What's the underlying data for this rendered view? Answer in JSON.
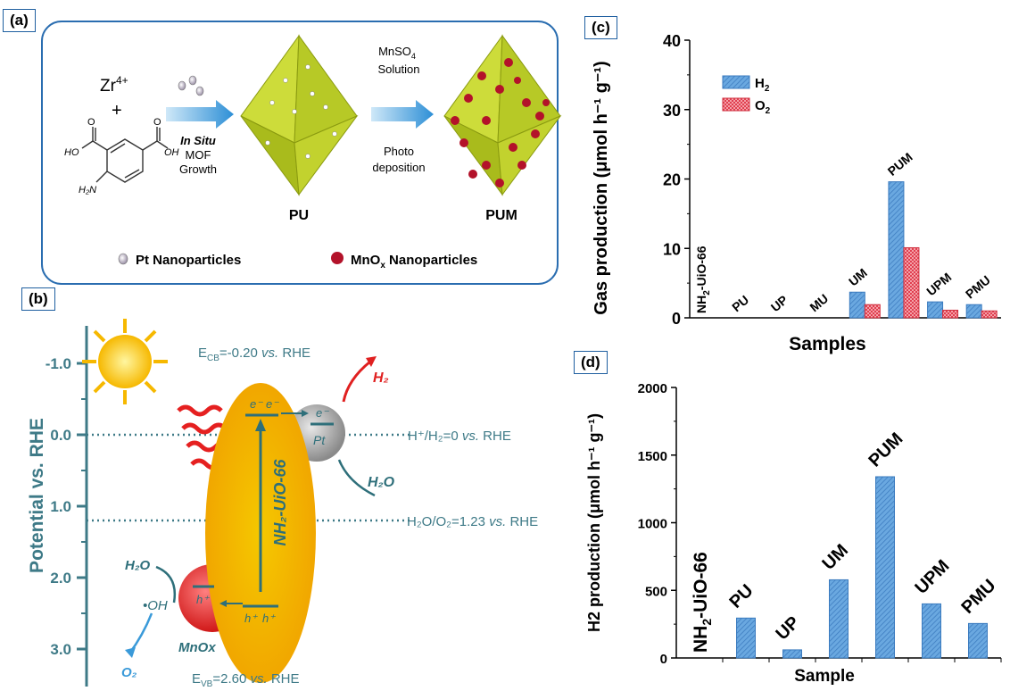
{
  "panel_a": {
    "label": "(a)",
    "reactant_top": "Zr",
    "reactant_top_sup": "4+",
    "plus": "+",
    "step1_line1": "In Situ",
    "step1_line2": "MOF",
    "step1_line3": "Growth",
    "product1": "PU",
    "step2_line1": "MnSO",
    "step2_line1_sub": "4",
    "step2_line2": "Solution",
    "step2_line3": "Photo",
    "step2_line4": "deposition",
    "product2": "PUM",
    "legend_pt": "Pt Nanoparticles",
    "legend_mnox_main": "MnO",
    "legend_mnox_sub": "x",
    "legend_mnox_rest": " Nanoparticles",
    "colors": {
      "frame": "#2a6db0",
      "octahedron": "#c7d62a",
      "mnox": "#b3122a",
      "arrow": "#2d8fd6"
    }
  },
  "panel_b": {
    "label": "(b)",
    "y_axis_label": "Potential vs. RHE",
    "ticks": [
      "-1.0",
      "0.0",
      "1.0",
      "2.0",
      "3.0"
    ],
    "ecb_main": "E",
    "ecb_sub": "CB",
    "ecb_text": "=-0.20 ",
    "ecb_vs": "vs.",
    "ecb_rhe": " RHE",
    "evb_main": "E",
    "evb_sub": "VB",
    "evb_text": "=2.60 ",
    "evb_vs": "vs.",
    "evb_rhe": " RHE",
    "line1_text": "H⁺/H₂=0 ",
    "line1_vs": "vs.",
    "line1_rhe": " RHE",
    "line2_text": "H₂O/O₂=1.23 ",
    "line2_vs": "vs.",
    "line2_rhe": " RHE",
    "mof_name": "NH₂-UiO-66",
    "pt": "Pt",
    "mnox": "MnOx",
    "h2": "H₂",
    "h2o_top": "H₂O",
    "h2o_bottom": "H₂O",
    "oh": "•OH",
    "o2": "O₂",
    "electron1": "e⁻",
    "electron2": "e⁻",
    "electron3": "e⁻",
    "hole1": "h⁺",
    "hole2": "h⁺",
    "hole3": "h⁺",
    "colors": {
      "text": "#3e7a87",
      "red": "#e02020",
      "blue": "#3a9ad9",
      "yellow": "#f5c400"
    }
  },
  "panel_c": {
    "label": "(c)",
    "legend_h2_main": "H",
    "legend_h2_sub": "2",
    "legend_o2_main": "O",
    "legend_o2_sub": "2",
    "bar_labels_nh2": "NH",
    "bar_labels_nh2_sub": "2",
    "bar_labels_nh2_rest": "-UiO-66"
  },
  "panel_d": {
    "label": "(d)",
    "nh2": "NH",
    "nh2_sub": "2",
    "nh2_rest": "-UiO-66"
  },
  "chart_data": [
    {
      "type": "bar",
      "ylabel": "Gas production (μmol h⁻¹ g⁻¹)",
      "xlabel": "Samples",
      "ylim": [
        0,
        40
      ],
      "yticks": [
        0,
        10,
        20,
        30,
        40
      ],
      "categories": [
        "NH2-UiO-66",
        "PU",
        "UP",
        "MU",
        "UM",
        "PUM",
        "UPM",
        "PMU"
      ],
      "series": [
        {
          "name": "H2",
          "values": [
            0,
            0,
            0,
            0,
            3.7,
            19.6,
            2.3,
            1.9
          ],
          "color": "#4a90d9"
        },
        {
          "name": "O2",
          "values": [
            0,
            0,
            0,
            0,
            1.9,
            10.1,
            1.1,
            1.0
          ],
          "color": "#e84a5a"
        }
      ],
      "legend": "top-left"
    },
    {
      "type": "bar",
      "ylabel": "H2 production (μmol h⁻¹ g⁻¹)",
      "xlabel": "Sample",
      "ylim": [
        0,
        2000
      ],
      "yticks": [
        0,
        500,
        1000,
        1500,
        2000
      ],
      "categories": [
        "NH2-UiO-66",
        "PU",
        "UP",
        "UM",
        "PUM",
        "UPM",
        "PMU"
      ],
      "values": [
        0,
        295,
        60,
        578,
        1340,
        400,
        255
      ],
      "color": "#4a90d9"
    }
  ]
}
